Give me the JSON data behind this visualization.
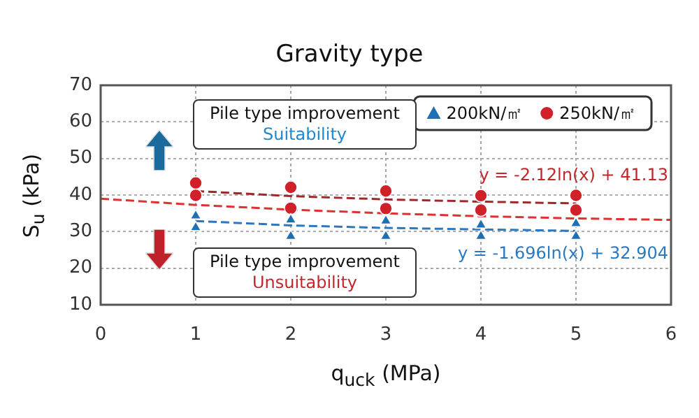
{
  "chart_data": {
    "type": "scatter",
    "title": "Gravity type",
    "xlabel": "q$_{uck}$ (MPa)",
    "ylabel": "S$_{u}$ (kPa)",
    "xlim": [
      0,
      6
    ],
    "xticks": [
      0,
      1,
      2,
      3,
      4,
      5,
      6
    ],
    "ylim": [
      10,
      70
    ],
    "yticks": [
      10,
      20,
      30,
      40,
      50,
      60,
      70
    ],
    "grid": true,
    "legend": "top right",
    "series": [
      {
        "name": "200kN/㎡",
        "marker": "triangle",
        "color": "#1f6fb5",
        "x": [
          1,
          1,
          2,
          2,
          3,
          3,
          4,
          4,
          5,
          5
        ],
        "values": [
          34.3,
          31.1,
          33.2,
          28.7,
          32.9,
          28.7,
          31.8,
          28.7,
          32.2,
          28.7
        ]
      },
      {
        "name": "250kN/㎡",
        "marker": "circle",
        "color": "#d0202a",
        "x": [
          1,
          1,
          2,
          2,
          3,
          3,
          4,
          4,
          5,
          5
        ],
        "values": [
          43.3,
          39.9,
          42.1,
          36.4,
          41.1,
          36.3,
          39.8,
          35.9,
          39.9,
          35.9
        ]
      },
      {
        "type": "line",
        "marker": "none",
        "line_style": "dashed",
        "color": "#a0282c",
        "x": [
          1,
          2,
          3,
          4,
          5
        ],
        "values": [
          41.1,
          39.7,
          38.8,
          38.2,
          37.7
        ]
      },
      {
        "type": "line",
        "marker": "none",
        "line_style": "dashed",
        "color": "#2a78c0",
        "x": [
          1,
          2,
          3,
          4,
          5
        ],
        "values": [
          32.9,
          31.7,
          31,
          30.6,
          30.2
        ]
      },
      {
        "type": "line",
        "marker": "none",
        "line_style": "dashed",
        "color": "#e03030",
        "x": [
          0,
          1,
          2,
          3,
          4,
          5,
          6
        ],
        "values": [
          39,
          37.3,
          36,
          35,
          34.2,
          33.6,
          33.2
        ]
      }
    ],
    "annotations": [
      "Pile type improvement",
      "Suitability",
      "Pile type improvement",
      "Unsuitability",
      "y = -2.12ln(x) + 41.13",
      "y = -1.696ln(x) + 32.904"
    ]
  }
}
